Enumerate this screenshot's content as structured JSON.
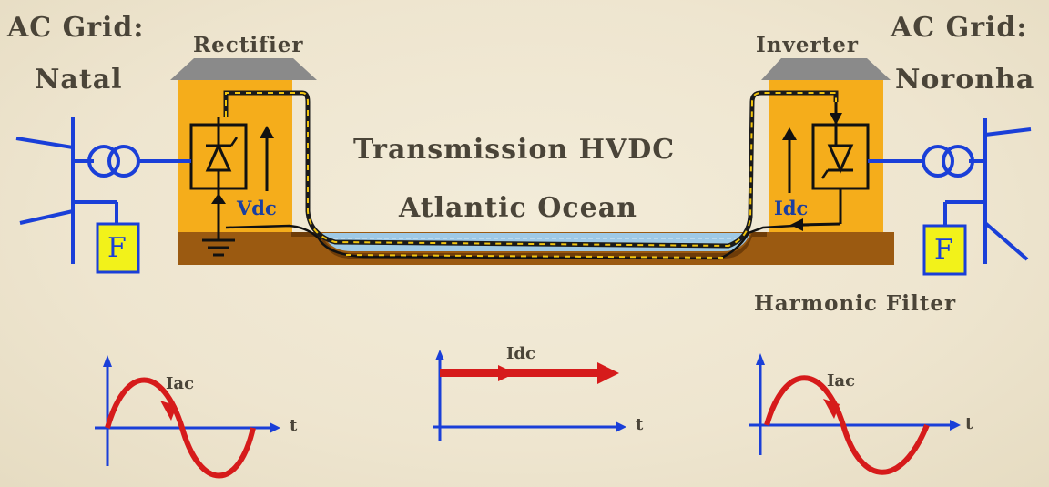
{
  "labels": {
    "ac_grid_left": "AC Grid:",
    "natal": "Natal",
    "rectifier": "Rectifier",
    "inverter": "Inverter",
    "ac_grid_right": "AC Grid:",
    "noronha": "Noronha",
    "transmission": "Transmission HVDC",
    "ocean": "Atlantic Ocean",
    "vdc": "Vdc",
    "idc_station": "Idc",
    "filter_left": "F",
    "filter_right": "F",
    "harmonic_filter": "Harmonic Filter"
  },
  "waveforms": {
    "left": {
      "label": "Iac",
      "axis": "t"
    },
    "middle": {
      "label": "Idc",
      "axis": "t"
    },
    "right": {
      "label": "Iac",
      "axis": "t"
    }
  },
  "colors": {
    "station": "#f5ad1b",
    "roof": "#8a8a8a",
    "ground": "#9b5a11",
    "water": "#9ec9e6",
    "line_blue": "#1a3fd8",
    "wave_red": "#d61b1b",
    "filter_fill": "#f2f21a"
  }
}
